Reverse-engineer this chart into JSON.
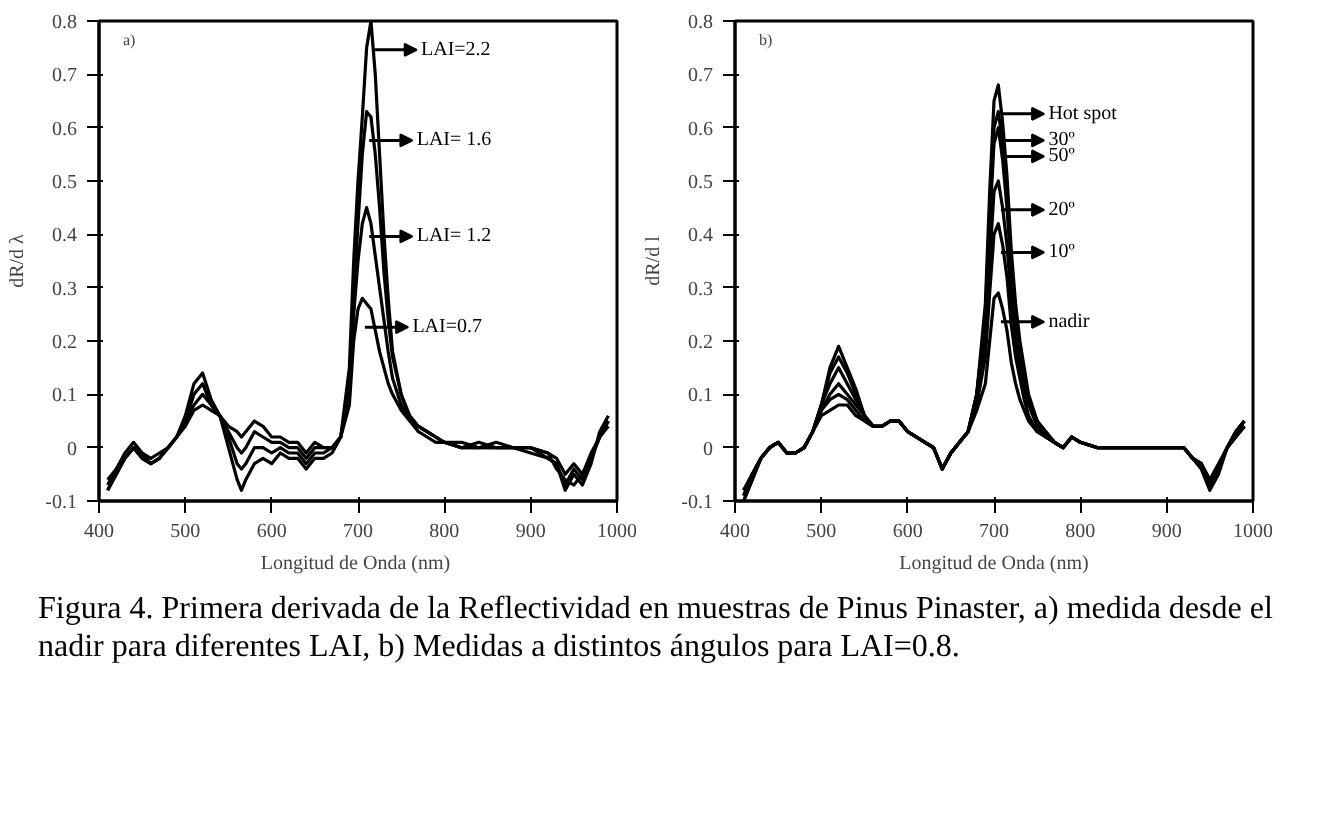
{
  "chart_data": [
    {
      "type": "line",
      "title": "a)",
      "xlabel": "Longitud de Onda  (nm)",
      "ylabel": "dR/d λ",
      "xlim": [
        400,
        1000
      ],
      "ylim": [
        -0.1,
        0.8
      ],
      "xticks": [
        400,
        500,
        600,
        700,
        800,
        900,
        1000
      ],
      "yticks": [
        -0.1,
        0,
        0.1,
        0.2,
        0.3,
        0.4,
        0.5,
        0.6,
        0.7,
        0.8
      ],
      "grid": false,
      "legend": "top right",
      "marker": "none",
      "line_style": "solid",
      "x": [
        410,
        420,
        430,
        440,
        450,
        460,
        470,
        480,
        490,
        500,
        510,
        520,
        530,
        540,
        550,
        560,
        565,
        570,
        580,
        590,
        600,
        610,
        620,
        630,
        640,
        650,
        660,
        670,
        680,
        690,
        695,
        700,
        705,
        710,
        715,
        720,
        725,
        730,
        735,
        740,
        750,
        760,
        770,
        780,
        790,
        800,
        820,
        840,
        860,
        880,
        900,
        920,
        930,
        940,
        950,
        960,
        970,
        980,
        990
      ],
      "series": [
        {
          "name": "LAI=2.2",
          "color": "#000000",
          "values": [
            -0.08,
            -0.05,
            -0.02,
            0.0,
            -0.02,
            -0.03,
            -0.02,
            0.0,
            0.02,
            0.06,
            0.12,
            0.14,
            0.09,
            0.06,
            0.0,
            -0.06,
            -0.08,
            -0.06,
            -0.03,
            -0.02,
            -0.03,
            -0.01,
            -0.02,
            -0.02,
            -0.04,
            -0.02,
            -0.02,
            -0.01,
            0.02,
            0.15,
            0.35,
            0.5,
            0.62,
            0.75,
            0.8,
            0.7,
            0.55,
            0.4,
            0.28,
            0.18,
            0.1,
            0.05,
            0.03,
            0.02,
            0.01,
            0.01,
            0.0,
            0.0,
            0.0,
            0.0,
            0.0,
            -0.02,
            -0.03,
            -0.08,
            -0.05,
            -0.07,
            -0.03,
            0.03,
            0.06
          ]
        },
        {
          "name": "LAI= 1.6",
          "color": "#000000",
          "values": [
            -0.08,
            -0.05,
            -0.02,
            0.0,
            -0.02,
            -0.03,
            -0.02,
            0.0,
            0.02,
            0.05,
            0.1,
            0.12,
            0.08,
            0.06,
            0.02,
            -0.03,
            -0.04,
            -0.03,
            0.0,
            0.0,
            -0.01,
            0.0,
            -0.01,
            -0.01,
            -0.03,
            -0.01,
            -0.01,
            0.0,
            0.02,
            0.12,
            0.28,
            0.42,
            0.55,
            0.63,
            0.62,
            0.55,
            0.45,
            0.33,
            0.24,
            0.17,
            0.1,
            0.06,
            0.04,
            0.03,
            0.02,
            0.01,
            0.01,
            0.0,
            0.01,
            0.0,
            0.0,
            -0.01,
            -0.04,
            -0.06,
            -0.07,
            -0.05,
            -0.02,
            0.02,
            0.05
          ]
        },
        {
          "name": "LAI= 1.2",
          "color": "#000000",
          "values": [
            -0.07,
            -0.04,
            -0.02,
            0.0,
            -0.01,
            -0.03,
            -0.02,
            0.0,
            0.02,
            0.05,
            0.08,
            0.1,
            0.08,
            0.06,
            0.03,
            0.0,
            -0.01,
            0.0,
            0.03,
            0.02,
            0.01,
            0.01,
            0.0,
            0.0,
            -0.02,
            0.0,
            0.0,
            0.0,
            0.02,
            0.1,
            0.25,
            0.35,
            0.42,
            0.45,
            0.42,
            0.36,
            0.3,
            0.24,
            0.18,
            0.13,
            0.08,
            0.05,
            0.04,
            0.03,
            0.02,
            0.01,
            0.0,
            0.01,
            0.0,
            0.0,
            -0.01,
            -0.02,
            -0.03,
            -0.07,
            -0.04,
            -0.06,
            -0.02,
            0.02,
            0.05
          ]
        },
        {
          "name": "LAI=0.7",
          "color": "#000000",
          "values": [
            -0.06,
            -0.04,
            -0.01,
            0.01,
            -0.01,
            -0.02,
            -0.01,
            0.0,
            0.02,
            0.04,
            0.07,
            0.08,
            0.07,
            0.06,
            0.04,
            0.03,
            0.02,
            0.03,
            0.05,
            0.04,
            0.02,
            0.02,
            0.01,
            0.01,
            -0.01,
            0.01,
            0.0,
            0.0,
            0.02,
            0.08,
            0.2,
            0.26,
            0.28,
            0.27,
            0.26,
            0.22,
            0.18,
            0.15,
            0.12,
            0.1,
            0.07,
            0.05,
            0.04,
            0.03,
            0.02,
            0.01,
            0.0,
            0.0,
            0.0,
            0.0,
            0.0,
            -0.01,
            -0.02,
            -0.05,
            -0.03,
            -0.05,
            -0.01,
            0.02,
            0.04
          ]
        }
      ],
      "annotations": [
        "Figura 4. Primera derivada de la Reflectividad en muestras de Pinus Pinaster,  a) medida desde el nadir para diferentes LAI, b) Medidas a distintos ángulos para LAI=0.8."
      ]
    },
    {
      "type": "line",
      "title": "b)",
      "xlabel": "Longitud de Onda (nm)",
      "ylabel": "dR/d l",
      "xlim": [
        400,
        1000
      ],
      "ylim": [
        -0.1,
        0.8
      ],
      "xticks": [
        400,
        500,
        600,
        700,
        800,
        900,
        1000
      ],
      "yticks": [
        -0.1,
        0,
        0.1,
        0.2,
        0.3,
        0.4,
        0.5,
        0.6,
        0.7,
        0.8
      ],
      "grid": false,
      "legend": "top right",
      "marker": "none",
      "line_style": "solid",
      "x": [
        410,
        420,
        430,
        440,
        450,
        460,
        470,
        480,
        490,
        500,
        510,
        520,
        530,
        540,
        550,
        560,
        565,
        570,
        580,
        590,
        600,
        610,
        620,
        630,
        640,
        650,
        660,
        670,
        680,
        690,
        695,
        700,
        705,
        710,
        715,
        720,
        725,
        730,
        735,
        740,
        750,
        760,
        770,
        780,
        790,
        800,
        820,
        840,
        860,
        880,
        900,
        920,
        930,
        940,
        950,
        960,
        970,
        980,
        990
      ],
      "series": [
        {
          "name": "Hot spot",
          "color": "#000000",
          "values": [
            -0.1,
            -0.06,
            -0.02,
            0.0,
            0.01,
            -0.01,
            -0.01,
            0.0,
            0.03,
            0.08,
            0.15,
            0.19,
            0.15,
            0.11,
            0.06,
            0.04,
            0.04,
            0.04,
            0.05,
            0.05,
            0.03,
            0.02,
            0.01,
            0.0,
            -0.04,
            -0.01,
            0.01,
            0.03,
            0.1,
            0.27,
            0.48,
            0.65,
            0.68,
            0.61,
            0.51,
            0.37,
            0.27,
            0.2,
            0.15,
            0.1,
            0.05,
            0.03,
            0.01,
            0.0,
            0.02,
            0.01,
            0.0,
            0.0,
            0.0,
            0.0,
            0.0,
            0.0,
            -0.02,
            -0.03,
            -0.07,
            -0.04,
            0.0,
            0.03,
            0.05
          ]
        },
        {
          "name": "30º",
          "color": "#000000",
          "values": [
            -0.1,
            -0.06,
            -0.02,
            0.0,
            0.01,
            -0.01,
            -0.01,
            0.0,
            0.03,
            0.08,
            0.14,
            0.17,
            0.14,
            0.1,
            0.06,
            0.04,
            0.04,
            0.04,
            0.05,
            0.05,
            0.03,
            0.02,
            0.01,
            0.0,
            -0.04,
            -0.01,
            0.01,
            0.03,
            0.1,
            0.25,
            0.44,
            0.6,
            0.63,
            0.57,
            0.47,
            0.35,
            0.25,
            0.19,
            0.14,
            0.09,
            0.05,
            0.03,
            0.01,
            0.0,
            0.02,
            0.01,
            0.0,
            0.0,
            0.0,
            0.0,
            0.0,
            0.0,
            -0.02,
            -0.03,
            -0.07,
            -0.04,
            0.0,
            0.03,
            0.05
          ]
        },
        {
          "name": "50º",
          "color": "#000000",
          "values": [
            -0.09,
            -0.05,
            -0.02,
            0.0,
            0.01,
            -0.01,
            -0.01,
            0.0,
            0.03,
            0.08,
            0.12,
            0.15,
            0.12,
            0.09,
            0.06,
            0.04,
            0.04,
            0.04,
            0.05,
            0.05,
            0.03,
            0.02,
            0.01,
            0.0,
            -0.04,
            -0.01,
            0.01,
            0.03,
            0.1,
            0.24,
            0.42,
            0.57,
            0.6,
            0.54,
            0.45,
            0.33,
            0.24,
            0.18,
            0.13,
            0.09,
            0.05,
            0.02,
            0.01,
            0.0,
            0.02,
            0.01,
            0.0,
            0.0,
            0.0,
            0.0,
            0.0,
            0.0,
            -0.02,
            -0.04,
            -0.08,
            -0.05,
            0.0,
            0.03,
            0.05
          ]
        },
        {
          "name": "20º",
          "color": "#000000",
          "values": [
            -0.09,
            -0.05,
            -0.02,
            0.0,
            0.01,
            -0.01,
            -0.01,
            0.0,
            0.03,
            0.07,
            0.1,
            0.12,
            0.1,
            0.08,
            0.06,
            0.04,
            0.04,
            0.04,
            0.05,
            0.05,
            0.03,
            0.02,
            0.01,
            0.0,
            -0.04,
            -0.01,
            0.01,
            0.03,
            0.09,
            0.2,
            0.35,
            0.48,
            0.5,
            0.45,
            0.38,
            0.28,
            0.2,
            0.15,
            0.11,
            0.08,
            0.04,
            0.02,
            0.01,
            0.0,
            0.02,
            0.01,
            0.0,
            0.0,
            0.0,
            0.0,
            0.0,
            0.0,
            -0.02,
            -0.03,
            -0.07,
            -0.04,
            0.0,
            0.02,
            0.04
          ]
        },
        {
          "name": "10º",
          "color": "#000000",
          "values": [
            -0.08,
            -0.05,
            -0.02,
            0.0,
            0.01,
            -0.01,
            -0.01,
            0.0,
            0.03,
            0.07,
            0.09,
            0.1,
            0.09,
            0.07,
            0.05,
            0.04,
            0.04,
            0.04,
            0.05,
            0.05,
            0.03,
            0.02,
            0.01,
            0.0,
            -0.04,
            -0.01,
            0.01,
            0.03,
            0.08,
            0.17,
            0.29,
            0.4,
            0.42,
            0.38,
            0.32,
            0.23,
            0.17,
            0.13,
            0.09,
            0.06,
            0.03,
            0.02,
            0.01,
            0.0,
            0.02,
            0.01,
            0.0,
            0.0,
            0.0,
            0.0,
            0.0,
            0.0,
            -0.02,
            -0.03,
            -0.06,
            -0.04,
            0.0,
            0.02,
            0.04
          ]
        },
        {
          "name": "nadir",
          "color": "#000000",
          "values": [
            -0.08,
            -0.05,
            -0.02,
            0.0,
            0.01,
            -0.01,
            -0.01,
            0.0,
            0.03,
            0.06,
            0.07,
            0.08,
            0.08,
            0.06,
            0.05,
            0.04,
            0.04,
            0.04,
            0.05,
            0.05,
            0.03,
            0.02,
            0.01,
            0.0,
            -0.04,
            -0.01,
            0.01,
            0.03,
            0.07,
            0.12,
            0.2,
            0.28,
            0.29,
            0.26,
            0.22,
            0.16,
            0.12,
            0.09,
            0.07,
            0.05,
            0.03,
            0.02,
            0.01,
            0.0,
            0.02,
            0.01,
            0.0,
            0.0,
            0.0,
            0.0,
            0.0,
            0.0,
            -0.02,
            -0.03,
            -0.06,
            -0.03,
            0.0,
            0.02,
            0.04
          ]
        }
      ]
    }
  ]
}
